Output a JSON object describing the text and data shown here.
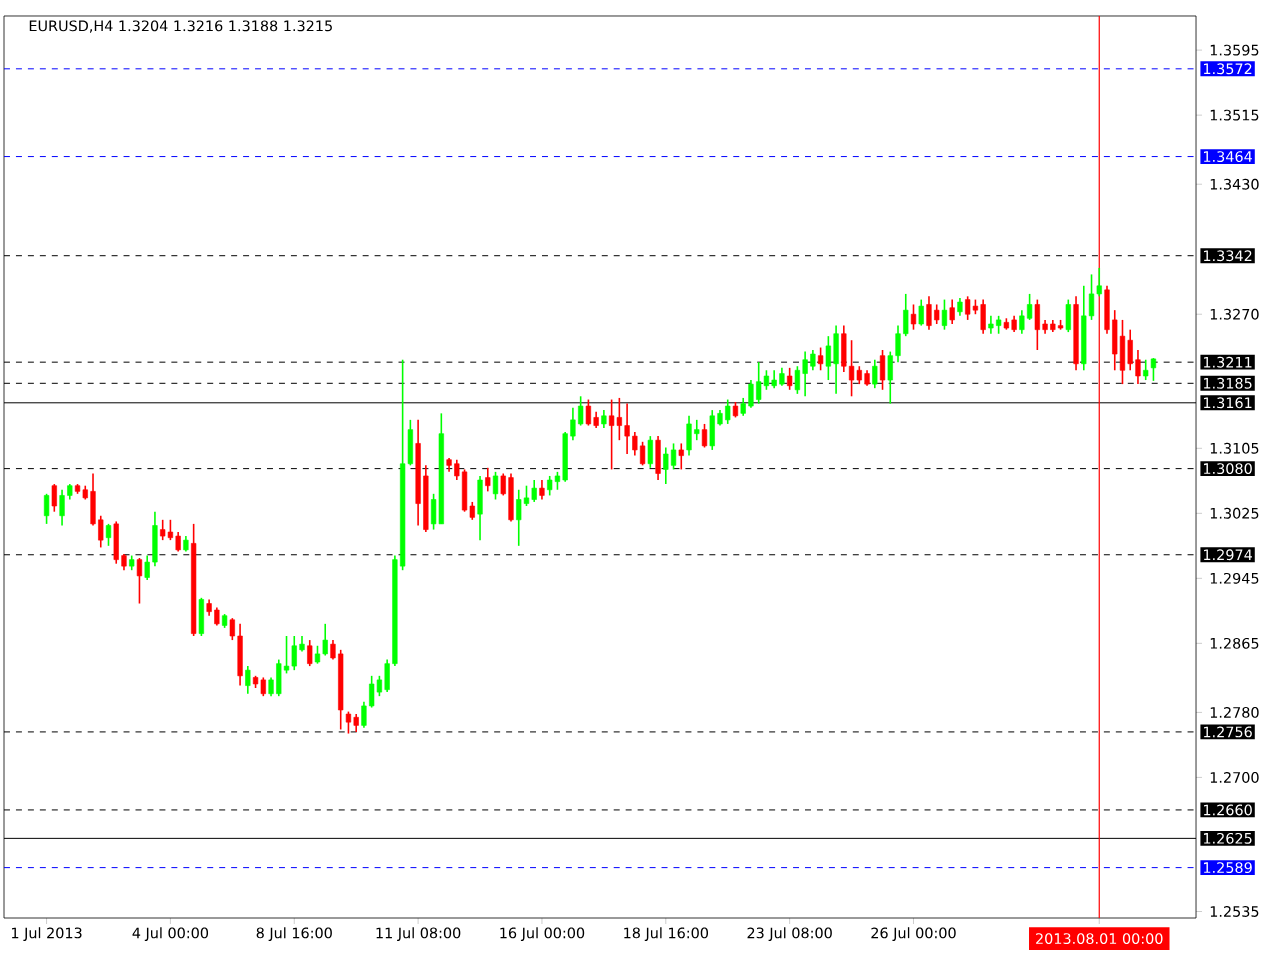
{
  "chart_data": {
    "type": "candlestick",
    "title": "EURUSD,H4  1.3204 1.3216 1.3188 1.3215",
    "categories": [
      "1 Jul 2013",
      null,
      null,
      null,
      null,
      null,
      null,
      null,
      null,
      null,
      null,
      null,
      null,
      null,
      null,
      null,
      "4 Jul 00:00",
      null,
      null,
      null,
      null,
      null,
      null,
      null,
      null,
      null,
      null,
      null,
      null,
      null,
      null,
      null,
      "8 Jul 16:00",
      null,
      null,
      null,
      null,
      null,
      null,
      null,
      null,
      null,
      null,
      null,
      null,
      null,
      null,
      null,
      "11 Jul 08:00",
      null,
      null,
      null,
      null,
      null,
      null,
      null,
      null,
      null,
      null,
      null,
      null,
      null,
      null,
      null,
      "16 Jul 00:00",
      null,
      null,
      null,
      null,
      null,
      null,
      null,
      null,
      null,
      null,
      null,
      null,
      null,
      null,
      null,
      "18 Jul 16:00",
      null,
      null,
      null,
      null,
      null,
      null,
      null,
      null,
      null,
      null,
      null,
      null,
      null,
      null,
      null,
      "23 Jul 08:00",
      null,
      null,
      null,
      null,
      null,
      null,
      null,
      null,
      null,
      null,
      null,
      null,
      null,
      null,
      null,
      "26 Jul 00:00",
      null,
      null,
      null,
      null,
      null,
      null,
      null,
      null,
      null,
      null,
      null,
      null,
      null,
      null,
      null,
      null,
      null,
      null,
      null,
      null,
      null,
      null,
      null,
      "2013.08.01 00:00",
      null,
      null,
      null,
      null,
      null,
      null,
      null
    ],
    "ohlc": [
      [
        1.3022,
        1.3049,
        1.3012,
        1.3047
      ],
      [
        1.3059,
        1.3061,
        1.3027,
        1.3034
      ],
      [
        1.3022,
        1.3054,
        1.301,
        1.3047
      ],
      [
        1.3047,
        1.3061,
        1.3042,
        1.3059
      ],
      [
        1.3059,
        1.3061,
        1.3049,
        1.3052
      ],
      [
        1.3054,
        1.3059,
        1.3042,
        1.3044
      ],
      [
        1.3052,
        1.3074,
        1.301,
        1.3012
      ],
      [
        1.3017,
        1.3022,
        1.2983,
        1.2992
      ],
      [
        1.2995,
        1.3012,
        1.2985,
        1.301
      ],
      [
        1.3012,
        1.3015,
        1.2963,
        1.2968
      ],
      [
        1.2973,
        1.2975,
        1.2955,
        1.296
      ],
      [
        1.296,
        1.2973,
        1.2955,
        1.2968
      ],
      [
        1.2968,
        1.297,
        1.2914,
        1.2948
      ],
      [
        1.2946,
        1.2973,
        1.2943,
        1.2965
      ],
      [
        1.2965,
        1.3027,
        1.296,
        1.301
      ],
      [
        1.3005,
        1.3017,
        1.2992,
        1.2997
      ],
      [
        1.3002,
        1.3017,
        1.2992,
        1.2995
      ],
      [
        1.2997,
        1.3002,
        1.2978,
        1.298
      ],
      [
        1.298,
        1.2997,
        1.2978,
        1.2992
      ],
      [
        1.2988,
        1.3012,
        1.2874,
        1.2877
      ],
      [
        1.2877,
        1.2921,
        1.2874,
        1.2919
      ],
      [
        1.2914,
        1.2919,
        1.2899,
        1.2904
      ],
      [
        1.2906,
        1.2909,
        1.2887,
        1.2889
      ],
      [
        1.2887,
        1.2901,
        1.2884,
        1.2899
      ],
      [
        1.2894,
        1.2896,
        1.2869,
        1.2874
      ],
      [
        1.2874,
        1.2889,
        1.2813,
        1.2825
      ],
      [
        1.2813,
        1.2837,
        1.2803,
        1.2832
      ],
      [
        1.2823,
        1.2825,
        1.281,
        1.2815
      ],
      [
        1.282,
        1.2823,
        1.28,
        1.2803
      ],
      [
        1.2803,
        1.2823,
        1.28,
        1.282
      ],
      [
        1.2803,
        1.2845,
        1.28,
        1.284
      ],
      [
        1.2832,
        1.2874,
        1.2828,
        1.2837
      ],
      [
        1.2837,
        1.2874,
        1.2832,
        1.2862
      ],
      [
        1.2857,
        1.2874,
        1.2855,
        1.2864
      ],
      [
        1.2862,
        1.2869,
        1.2837,
        1.284
      ],
      [
        1.2842,
        1.2862,
        1.284,
        1.2852
      ],
      [
        1.2852,
        1.2889,
        1.285,
        1.2869
      ],
      [
        1.2864,
        1.2869,
        1.2845,
        1.2847
      ],
      [
        1.2852,
        1.2857,
        1.2759,
        1.2783
      ],
      [
        1.2778,
        1.2781,
        1.2754,
        1.2768
      ],
      [
        1.2774,
        1.2778,
        1.2756,
        1.2764
      ],
      [
        1.2764,
        1.2793,
        1.2761,
        1.2788
      ],
      [
        1.2788,
        1.2825,
        1.2786,
        1.2815
      ],
      [
        1.2805,
        1.2825,
        1.28,
        1.282
      ],
      [
        1.2808,
        1.2845,
        1.2805,
        1.284
      ],
      [
        1.284,
        1.2973,
        1.2837,
        1.2968
      ],
      [
        1.296,
        1.3214,
        1.2955,
        1.3086
      ],
      [
        1.3086,
        1.314,
        1.3084,
        1.3128
      ],
      [
        1.3111,
        1.314,
        1.301,
        1.3037
      ],
      [
        1.3071,
        1.3084,
        1.3002,
        1.3005
      ],
      [
        1.3012,
        1.3049,
        1.3005,
        1.3042
      ],
      [
        1.3012,
        1.3148,
        1.3012,
        1.3123
      ],
      [
        1.3091,
        1.3093,
        1.3076,
        1.3084
      ],
      [
        1.3086,
        1.3091,
        1.3066,
        1.3071
      ],
      [
        1.3076,
        1.3079,
        1.3027,
        1.3029
      ],
      [
        1.3034,
        1.3039,
        1.3017,
        1.302
      ],
      [
        1.3024,
        1.3071,
        1.2992,
        1.3066
      ],
      [
        1.3069,
        1.3081,
        1.3052,
        1.3059
      ],
      [
        1.3049,
        1.3076,
        1.3042,
        1.3071
      ],
      [
        1.3071,
        1.3074,
        1.3047,
        1.3049
      ],
      [
        1.3069,
        1.3074,
        1.3015,
        1.3017
      ],
      [
        1.3017,
        1.3054,
        1.2985,
        1.3042
      ],
      [
        1.3037,
        1.3059,
        1.3034,
        1.3044
      ],
      [
        1.3042,
        1.3066,
        1.3039,
        1.3056
      ],
      [
        1.3056,
        1.3066,
        1.3042,
        1.3047
      ],
      [
        1.3054,
        1.3071,
        1.3047,
        1.3066
      ],
      [
        1.3064,
        1.3076,
        1.3054,
        1.3071
      ],
      [
        1.3066,
        1.3125,
        1.3064,
        1.3123
      ],
      [
        1.312,
        1.3155,
        1.3115,
        1.314
      ],
      [
        1.3135,
        1.3169,
        1.3133,
        1.3157
      ],
      [
        1.3157,
        1.3165,
        1.3133,
        1.3135
      ],
      [
        1.3143,
        1.315,
        1.313,
        1.3133
      ],
      [
        1.3135,
        1.3152,
        1.313,
        1.3145
      ],
      [
        1.3145,
        1.3165,
        1.3079,
        1.3133
      ],
      [
        1.3143,
        1.3167,
        1.3115,
        1.3133
      ],
      [
        1.3133,
        1.316,
        1.3098,
        1.312
      ],
      [
        1.312,
        1.3125,
        1.3096,
        1.3103
      ],
      [
        1.3108,
        1.3113,
        1.3084,
        1.3086
      ],
      [
        1.3086,
        1.312,
        1.3081,
        1.3115
      ],
      [
        1.3115,
        1.312,
        1.3066,
        1.3074
      ],
      [
        1.3079,
        1.3106,
        1.3061,
        1.3098
      ],
      [
        1.3084,
        1.3111,
        1.3079,
        1.3103
      ],
      [
        1.3103,
        1.3111,
        1.3079,
        1.3096
      ],
      [
        1.3103,
        1.3145,
        1.3096,
        1.3135
      ],
      [
        1.3123,
        1.314,
        1.3115,
        1.3128
      ],
      [
        1.3128,
        1.3135,
        1.3106,
        1.3108
      ],
      [
        1.3108,
        1.3152,
        1.3103,
        1.3145
      ],
      [
        1.3135,
        1.3152,
        1.3133,
        1.3148
      ],
      [
        1.314,
        1.3165,
        1.3135,
        1.3157
      ],
      [
        1.3157,
        1.3162,
        1.3143,
        1.3145
      ],
      [
        1.3148,
        1.3167,
        1.3145,
        1.316
      ],
      [
        1.3157,
        1.3189,
        1.3155,
        1.3184
      ],
      [
        1.3165,
        1.3211,
        1.316,
        1.3187
      ],
      [
        1.3182,
        1.3201,
        1.3177,
        1.3194
      ],
      [
        1.3182,
        1.3201,
        1.3179,
        1.3189
      ],
      [
        1.3184,
        1.3204,
        1.3182,
        1.3197
      ],
      [
        1.3194,
        1.3204,
        1.3177,
        1.3182
      ],
      [
        1.3177,
        1.3206,
        1.3172,
        1.3201
      ],
      [
        1.3197,
        1.3224,
        1.3169,
        1.3214
      ],
      [
        1.3206,
        1.3226,
        1.3201,
        1.3221
      ],
      [
        1.3219,
        1.3229,
        1.3201,
        1.3209
      ],
      [
        1.3206,
        1.3243,
        1.3189,
        1.3231
      ],
      [
        1.3209,
        1.3256,
        1.3172,
        1.3246
      ],
      [
        1.3246,
        1.3256,
        1.3199,
        1.3206
      ],
      [
        1.3206,
        1.3238,
        1.3169,
        1.3189
      ],
      [
        1.3201,
        1.3206,
        1.3184,
        1.3189
      ],
      [
        1.3197,
        1.3201,
        1.3182,
        1.3184
      ],
      [
        1.3184,
        1.3214,
        1.3179,
        1.3206
      ],
      [
        1.3219,
        1.3226,
        1.3177,
        1.3189
      ],
      [
        1.3189,
        1.3224,
        1.316,
        1.3219
      ],
      [
        1.3219,
        1.3256,
        1.3211,
        1.3246
      ],
      [
        1.3246,
        1.3295,
        1.3243,
        1.3275
      ],
      [
        1.327,
        1.3282,
        1.3251,
        1.3258
      ],
      [
        1.3258,
        1.3288,
        1.3256,
        1.328
      ],
      [
        1.3282,
        1.3292,
        1.3251,
        1.3256
      ],
      [
        1.3275,
        1.3282,
        1.3258,
        1.3263
      ],
      [
        1.3256,
        1.3288,
        1.3251,
        1.3275
      ],
      [
        1.3278,
        1.3288,
        1.3258,
        1.3263
      ],
      [
        1.3273,
        1.329,
        1.3268,
        1.3285
      ],
      [
        1.3288,
        1.3292,
        1.3263,
        1.327
      ],
      [
        1.328,
        1.3288,
        1.327,
        1.3275
      ],
      [
        1.3282,
        1.3288,
        1.3246,
        1.3251
      ],
      [
        1.3253,
        1.3268,
        1.3246,
        1.3258
      ],
      [
        1.3256,
        1.3268,
        1.3246,
        1.3263
      ],
      [
        1.326,
        1.3265,
        1.3251,
        1.3253
      ],
      [
        1.3263,
        1.3268,
        1.3248,
        1.3251
      ],
      [
        1.3251,
        1.3275,
        1.3246,
        1.3268
      ],
      [
        1.3265,
        1.3295,
        1.3263,
        1.3282
      ],
      [
        1.3282,
        1.3288,
        1.3226,
        1.3251
      ],
      [
        1.3258,
        1.3263,
        1.3246,
        1.3251
      ],
      [
        1.3258,
        1.3263,
        1.3248,
        1.3251
      ],
      [
        1.3256,
        1.3263,
        1.3251,
        1.3253
      ],
      [
        1.3251,
        1.3288,
        1.3248,
        1.3282
      ],
      [
        1.3282,
        1.3292,
        1.3201,
        1.3209
      ],
      [
        1.3209,
        1.3305,
        1.3201,
        1.3268
      ],
      [
        1.3268,
        1.3319,
        1.3263,
        1.3295
      ],
      [
        1.3295,
        1.3327,
        1.3292,
        1.3305
      ],
      [
        1.33,
        1.3305,
        1.3246,
        1.3251
      ],
      [
        1.3263,
        1.3275,
        1.3201,
        1.3221
      ],
      [
        1.3243,
        1.3263,
        1.3184,
        1.3201
      ],
      [
        1.3238,
        1.3251,
        1.3201,
        1.3209
      ],
      [
        1.3214,
        1.3226,
        1.3184,
        1.3194
      ],
      [
        1.3194,
        1.3214,
        1.3189,
        1.3201
      ],
      [
        1.3204,
        1.3216,
        1.3188,
        1.3215
      ]
    ],
    "ylim": [
      1.2527,
      1.3637
    ],
    "yticks": [
      1.2535,
      {
        "value": 1.27,
        "label": "1.2700"
      },
      {
        "value": 1.278,
        "label": "1.2780"
      },
      1.2865,
      1.2945,
      1.3025,
      1.3105,
      {
        "value": 1.327,
        "label": "1.3270"
      },
      {
        "value": 1.343,
        "label": "1.3430"
      },
      1.3515,
      1.3595
    ],
    "ref_lines": [
      {
        "axis": "y",
        "value": 1.3572,
        "label": "1.3572",
        "color": "#0000ff",
        "line_style": "dashed"
      },
      {
        "axis": "y",
        "value": 1.3464,
        "label": "1.3464",
        "color": "#0000ff",
        "line_style": "dashed"
      },
      {
        "axis": "y",
        "value": 1.3342,
        "label": "1.3342",
        "color": "#000000",
        "line_style": "dashed"
      },
      {
        "axis": "y",
        "value": 1.3211,
        "label": "1.3211",
        "color": "#000000",
        "line_style": "dashed"
      },
      {
        "axis": "y",
        "value": 1.3185,
        "label": "1.3185",
        "color": "#000000",
        "line_style": "dashed"
      },
      {
        "axis": "y",
        "value": 1.3161,
        "label": "1.3161",
        "color": "#000000",
        "line_style": "solid"
      },
      {
        "axis": "y",
        "value": 1.308,
        "label": "1.3080",
        "color": "#000000",
        "line_style": "dashed"
      },
      {
        "axis": "y",
        "value": 1.2974,
        "label": "1.2974",
        "color": "#000000",
        "line_style": "dashed"
      },
      {
        "axis": "y",
        "value": 1.2756,
        "label": "1.2756",
        "color": "#000000",
        "line_style": "dashed"
      },
      {
        "axis": "y",
        "value": 1.266,
        "label": "1.2660",
        "color": "#000000",
        "line_style": "dashed"
      },
      {
        "axis": "y",
        "value": 1.2625,
        "label": "1.2625",
        "color": "#000000",
        "line_style": "solid"
      },
      {
        "axis": "y",
        "value": 1.2589,
        "label": "1.2589",
        "color": "#0000ff",
        "line_style": "dashed"
      },
      {
        "axis": "x",
        "value": "2013.08.01 00:00",
        "color": "#ff0000",
        "line_style": "solid"
      }
    ],
    "grid": false
  }
}
